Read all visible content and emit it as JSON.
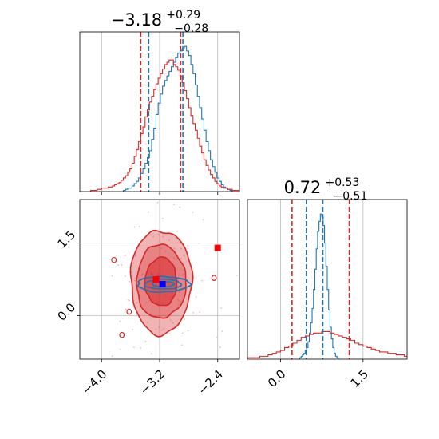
{
  "chart_data": {
    "type": "corner",
    "colors": {
      "blue": "#1f77b4",
      "red": "#d62728",
      "grid": "#b0b0b0"
    },
    "param1": {
      "title": {
        "main": "−3.18",
        "upper": "+0.29",
        "lower": "−0.28"
      },
      "xlim": [
        -4.3,
        -2.1
      ],
      "ticks": [
        -4.0,
        -3.2,
        -2.4
      ],
      "tick_labels": [
        "−4.0",
        "−3.2",
        "−2.4"
      ],
      "quantiles_blue": [
        -3.35,
        -2.88
      ],
      "quantiles_red": [
        -3.46,
        -2.91
      ],
      "hist_blue": {
        "x_start": -3.7,
        "x_step": 0.03,
        "counts": [
          1,
          2,
          3,
          3,
          5,
          7,
          9,
          12,
          16,
          20,
          25,
          30,
          36,
          46,
          56,
          68,
          78,
          86,
          93,
          98,
          102,
          106,
          110,
          114,
          118,
          122,
          124,
          126,
          128,
          124,
          120,
          112,
          104,
          94,
          84,
          74,
          64,
          54,
          44,
          36,
          28,
          22,
          17,
          12,
          9,
          6,
          4,
          3,
          2,
          1
        ]
      },
      "hist_red": {
        "x_start": -4.15,
        "x_step": 0.03,
        "counts": [
          1,
          1,
          1,
          2,
          2,
          3,
          3,
          3,
          4,
          4,
          5,
          6,
          7,
          8,
          10,
          12,
          14,
          17,
          20,
          25,
          31,
          37,
          44,
          51,
          57,
          66,
          72,
          79,
          84,
          90,
          95,
          100,
          104,
          108,
          112,
          114,
          116,
          116,
          112,
          110,
          107,
          102,
          96,
          89,
          82,
          74,
          67,
          60,
          54,
          47,
          40,
          34,
          28,
          23,
          19,
          15,
          12,
          9,
          7,
          5,
          4,
          3,
          3,
          2,
          2,
          1,
          1,
          1,
          1,
          1,
          1,
          1,
          1
        ]
      }
    },
    "param2": {
      "title": {
        "main": "0.72",
        "upper": "+0.53",
        "lower": "−0.51"
      },
      "xlim": [
        -0.6,
        2.3
      ],
      "ticks": [
        0.0,
        1.5
      ],
      "tick_labels": [
        "0.0",
        "1.5"
      ],
      "quantiles_blue": [
        0.47,
        0.77
      ],
      "quantiles_red": [
        0.21,
        1.25
      ],
      "hist_blue": {
        "x_start": 0.35,
        "x_step": 0.025,
        "counts": [
          1,
          2,
          3,
          4,
          6,
          8,
          12,
          18,
          25,
          35,
          48,
          62,
          76,
          88,
          95,
          100,
          98,
          92,
          80,
          64,
          48,
          34,
          22,
          14,
          8,
          4,
          2,
          1
        ]
      },
      "hist_red": {
        "x_start": -0.6,
        "x_step": 0.075,
        "counts": [
          1,
          1,
          1,
          2,
          2,
          3,
          4,
          5,
          6,
          8,
          9,
          11,
          13,
          15,
          16,
          17,
          18,
          18,
          19,
          19,
          18,
          17,
          16,
          15,
          14,
          13,
          11,
          10,
          9,
          8,
          7,
          6,
          5,
          5,
          4,
          4,
          3,
          3,
          2,
          2
        ]
      }
    },
    "joint": {
      "xlim": [
        -4.3,
        -2.1
      ],
      "ylim": [
        -0.9,
        2.4
      ],
      "yticks": [
        0.0,
        1.5
      ],
      "ytick_labels": [
        "0.0",
        "1.5"
      ],
      "red_contours": [
        {
          "cx": -3.18,
          "cy": 0.7,
          "rx": 0.84,
          "ry": 2.15,
          "fill_opacity": 0.35
        },
        {
          "cx": -3.18,
          "cy": 0.7,
          "rx": 0.68,
          "ry": 1.52,
          "fill_opacity": 0.35
        },
        {
          "cx": -3.18,
          "cy": 0.7,
          "rx": 0.44,
          "ry": 1.0,
          "fill_opacity": 0.55
        }
      ],
      "blue_contours": [
        {
          "cx": -3.15,
          "cy": 0.65,
          "rx": 0.72,
          "ry": 0.32
        },
        {
          "cx": -3.15,
          "cy": 0.65,
          "rx": 0.5,
          "ry": 0.2
        },
        {
          "cx": -3.15,
          "cy": 0.65,
          "rx": 0.3,
          "ry": 0.11
        }
      ],
      "red_markers": [
        {
          "x": -3.25,
          "y": 0.75
        },
        {
          "x": -2.4,
          "y": 1.4
        }
      ],
      "blue_markers": [
        {
          "x": -3.16,
          "y": 0.65
        }
      ]
    }
  }
}
